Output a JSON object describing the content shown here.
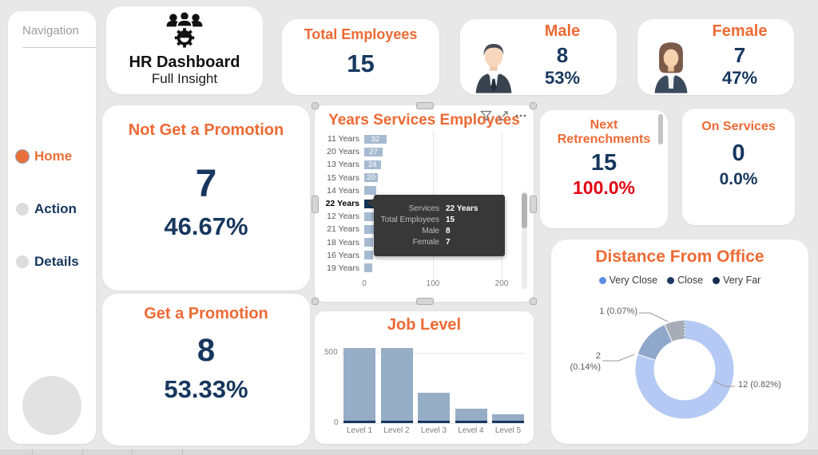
{
  "page": {
    "bg": "#e8e8e8",
    "accent": "#ed6a34",
    "navy": "#17375e",
    "red": "#e30613"
  },
  "nav": {
    "title": "Navigation",
    "items": [
      {
        "label": "Home",
        "active": true
      },
      {
        "label": "Action",
        "active": false
      },
      {
        "label": "Details",
        "active": false
      }
    ]
  },
  "logo": {
    "title": "HR Dashboard",
    "subtitle": "Full Insight"
  },
  "kpi": {
    "total": {
      "title": "Total Employees",
      "value": "15"
    },
    "male": {
      "title": "Male",
      "value": "8",
      "percent": "53%"
    },
    "female": {
      "title": "Female",
      "value": "7",
      "percent": "47%"
    },
    "not_promotion": {
      "title": "Not Get a Promotion",
      "value": "7",
      "percent": "46.67%"
    },
    "promotion": {
      "title": "Get a Promotion",
      "value": "8",
      "percent": "53.33%"
    },
    "next_retrenchments": {
      "title": "Next Retrenchments",
      "value": "15",
      "percent": "100.0%"
    },
    "on_services": {
      "title": "On Services",
      "value": "0",
      "percent": "0.0%"
    }
  },
  "chart_data": [
    {
      "id": "years_services",
      "type": "bar",
      "orientation": "horizontal",
      "title": "Years Services Employees",
      "categories": [
        "11 Years",
        "20 Years",
        "13 Years",
        "15 Years",
        "14 Years",
        "22 Years",
        "12 Years",
        "21 Years",
        "18 Years",
        "16 Years",
        "19 Years"
      ],
      "values": [
        32,
        27,
        24,
        20,
        18,
        15,
        15,
        14,
        13,
        13,
        12
      ],
      "selected_category": "22 Years",
      "x_ticks": [
        "0",
        "100",
        "200"
      ],
      "xlim": [
        0,
        230
      ],
      "grid": "vertical-dotted",
      "colors": {
        "bar": "#a6bbd2",
        "selected": "#0e3356",
        "value_label": "#ffffff"
      },
      "tooltip": {
        "rows": [
          {
            "label": "Services",
            "value": "22 Years"
          },
          {
            "label": "Total Employees",
            "value": "15"
          },
          {
            "label": "Male",
            "value": "8"
          },
          {
            "label": "Female",
            "value": "7"
          }
        ]
      }
    },
    {
      "id": "job_level",
      "type": "bar",
      "orientation": "vertical",
      "title": "Job Level",
      "categories": [
        "Level 1",
        "Level 2",
        "Level 3",
        "Level 4",
        "Level 5"
      ],
      "values": [
        540,
        535,
        215,
        105,
        65
      ],
      "y_ticks": [
        "500",
        "0"
      ],
      "ylim": [
        0,
        560
      ],
      "grid": "horizontal-dotted",
      "colors": {
        "bar": "#96adc6",
        "base": "#17375e"
      }
    },
    {
      "id": "distance_from_office",
      "type": "donut",
      "title": "Distance From Office",
      "total": 15,
      "legend": [
        {
          "label": "Very Close",
          "color": "#5b8ce0"
        },
        {
          "label": "Close",
          "color": "#1f3864"
        },
        {
          "label": "Very Far",
          "color": "#152c4e"
        }
      ],
      "slices": [
        {
          "label": "Very Close",
          "value": 12,
          "display": "12 (0.82%)",
          "color": "#b4c9f3"
        },
        {
          "label": "Close",
          "value": 2,
          "display": "2 (0.14%)",
          "color": "#8ea7ca"
        },
        {
          "label": "Very Far",
          "value": 1,
          "display": "1 (0.07%)",
          "color": "#a6adb6"
        }
      ]
    }
  ],
  "toolbar": {
    "icons": [
      "filter-icon",
      "focus-mode-icon",
      "more-options-icon"
    ]
  }
}
